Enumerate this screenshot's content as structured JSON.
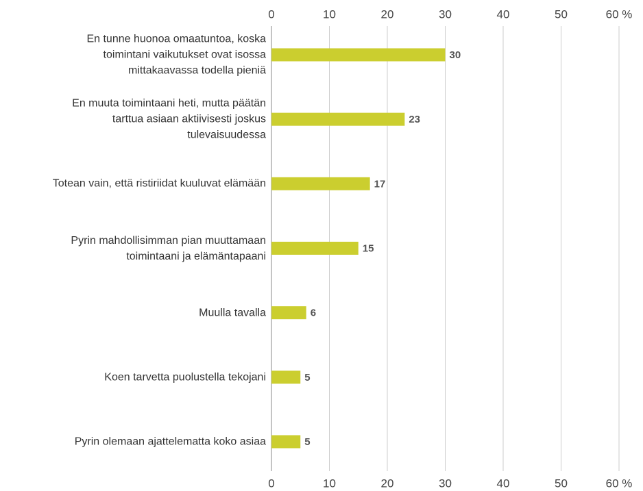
{
  "chart_data": {
    "type": "hbar",
    "categories": [
      "En tunne huonoa omaatuntoa, koska\ntoimintani vaikutukset ovat isossa\nmittakaavassa todella pieniä",
      "En muuta toimintaani heti, mutta päätän\ntarttua asiaan aktiivisesti joskus\ntulevaisuudessa",
      "Totean vain, että ristiriidat kuuluvat elämään",
      "Pyrin mahdollisimman pian muuttamaan\ntoimintaani ja elämäntapaani",
      "Muulla tavalla",
      "Koen tarvetta puolustella tekojani",
      "Pyrin olemaan ajattelematta koko asiaa"
    ],
    "values": [
      30,
      23,
      17,
      15,
      6,
      5,
      5
    ],
    "color": "#cbce2f",
    "xlim": [
      0,
      60
    ],
    "xticks": [
      0,
      10,
      20,
      30,
      40,
      50,
      {
        "value": 60,
        "label": "60 %"
      }
    ],
    "grid": true
  }
}
